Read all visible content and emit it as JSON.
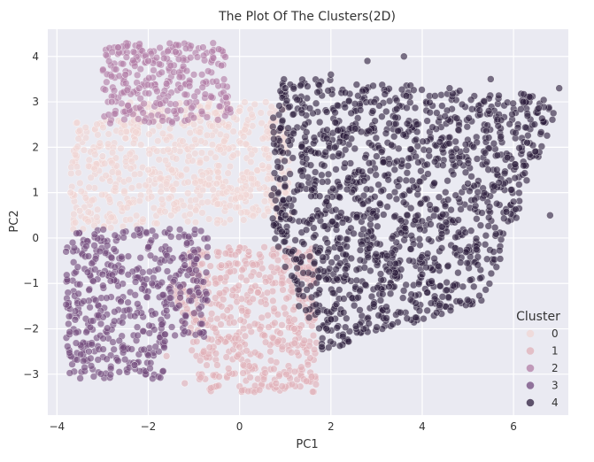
{
  "chart_data": {
    "type": "scatter",
    "title": "The Plot Of The Clusters(2D)",
    "xlabel": "PC1",
    "ylabel": "PC2",
    "xlim": [
      -4.2,
      7.2
    ],
    "ylim": [
      -3.9,
      4.6
    ],
    "xticks": [
      -4,
      -2,
      0,
      2,
      4,
      6
    ],
    "yticks": [
      -3,
      -2,
      -1,
      0,
      1,
      2,
      3,
      4
    ],
    "grid": true,
    "background": "#eaeaf2",
    "legend": {
      "title": "Cluster",
      "placement": "lower-right",
      "entries": [
        "0",
        "1",
        "2",
        "3",
        "4"
      ]
    },
    "series": [
      {
        "name": "0",
        "color": "#f0d5d3",
        "x_range": [
          -3.7,
          1.1
        ],
        "y_range": [
          0.0,
          3.0
        ],
        "values": [
          [
            -3.7,
            1.0
          ],
          [
            -3.5,
            0.6
          ],
          [
            -3.0,
            1.8
          ],
          [
            -2.5,
            2.2
          ],
          [
            -2.0,
            1.5
          ],
          [
            -1.5,
            0.5
          ],
          [
            -1.0,
            2.5
          ],
          [
            -0.5,
            1.2
          ],
          [
            0.0,
            2.8
          ],
          [
            0.5,
            1.6
          ],
          [
            1.0,
            1.0
          ],
          [
            0.8,
            2.2
          ]
        ]
      },
      {
        "name": "1",
        "color": "#e0b0b8",
        "x_range": [
          -1.8,
          1.7
        ],
        "y_range": [
          -3.4,
          -0.2
        ],
        "values": [
          [
            -1.6,
            -2.6
          ],
          [
            -1.2,
            -3.2
          ],
          [
            -0.8,
            -1.8
          ],
          [
            -0.4,
            -0.6
          ],
          [
            0.0,
            -2.4
          ],
          [
            0.4,
            -1.2
          ],
          [
            0.8,
            -3.2
          ],
          [
            1.2,
            -2.0
          ],
          [
            1.5,
            -0.8
          ],
          [
            0.2,
            -0.3
          ]
        ]
      },
      {
        "name": "2",
        "color": "#b27da6",
        "x_range": [
          -3.0,
          -0.2
        ],
        "y_range": [
          2.5,
          4.3
        ],
        "values": [
          [
            -2.8,
            3.0
          ],
          [
            -2.5,
            3.6
          ],
          [
            -2.2,
            3.3
          ],
          [
            -2.0,
            3.9
          ],
          [
            -1.6,
            3.4
          ],
          [
            -1.4,
            4.1
          ],
          [
            -1.0,
            3.6
          ],
          [
            -0.8,
            4.2
          ],
          [
            -0.4,
            3.8
          ],
          [
            -0.3,
            3.1
          ]
        ]
      },
      {
        "name": "3",
        "color": "#724a7d",
        "x_range": [
          -3.8,
          -0.7
        ],
        "y_range": [
          -3.1,
          0.2
        ],
        "values": [
          [
            -3.8,
            -0.3
          ],
          [
            -3.6,
            -1.8
          ],
          [
            -3.3,
            -2.5
          ],
          [
            -3.0,
            -0.8
          ],
          [
            -2.6,
            -1.4
          ],
          [
            -2.3,
            -2.8
          ],
          [
            -2.0,
            -0.2
          ],
          [
            -1.6,
            -1.6
          ],
          [
            -1.2,
            -0.6
          ],
          [
            -0.9,
            -1.2
          ],
          [
            -0.7,
            -0.2
          ]
        ]
      },
      {
        "name": "4",
        "color": "#2d1e3e",
        "x_range": [
          0.6,
          7.0
        ],
        "y_range": [
          -2.6,
          4.0
        ],
        "values": [
          [
            1.0,
            3.3
          ],
          [
            1.0,
            0.5
          ],
          [
            1.3,
            -1.5
          ],
          [
            1.8,
            -2.4
          ],
          [
            2.0,
            3.6
          ],
          [
            2.2,
            0.0
          ],
          [
            2.8,
            3.9
          ],
          [
            3.0,
            1.8
          ],
          [
            3.6,
            4.0
          ],
          [
            4.0,
            -0.8
          ],
          [
            4.6,
            3.3
          ],
          [
            5.0,
            1.2
          ],
          [
            5.5,
            3.5
          ],
          [
            6.0,
            0.8
          ],
          [
            6.3,
            2.1
          ],
          [
            6.8,
            0.5
          ],
          [
            7.0,
            3.3
          ]
        ]
      }
    ]
  }
}
